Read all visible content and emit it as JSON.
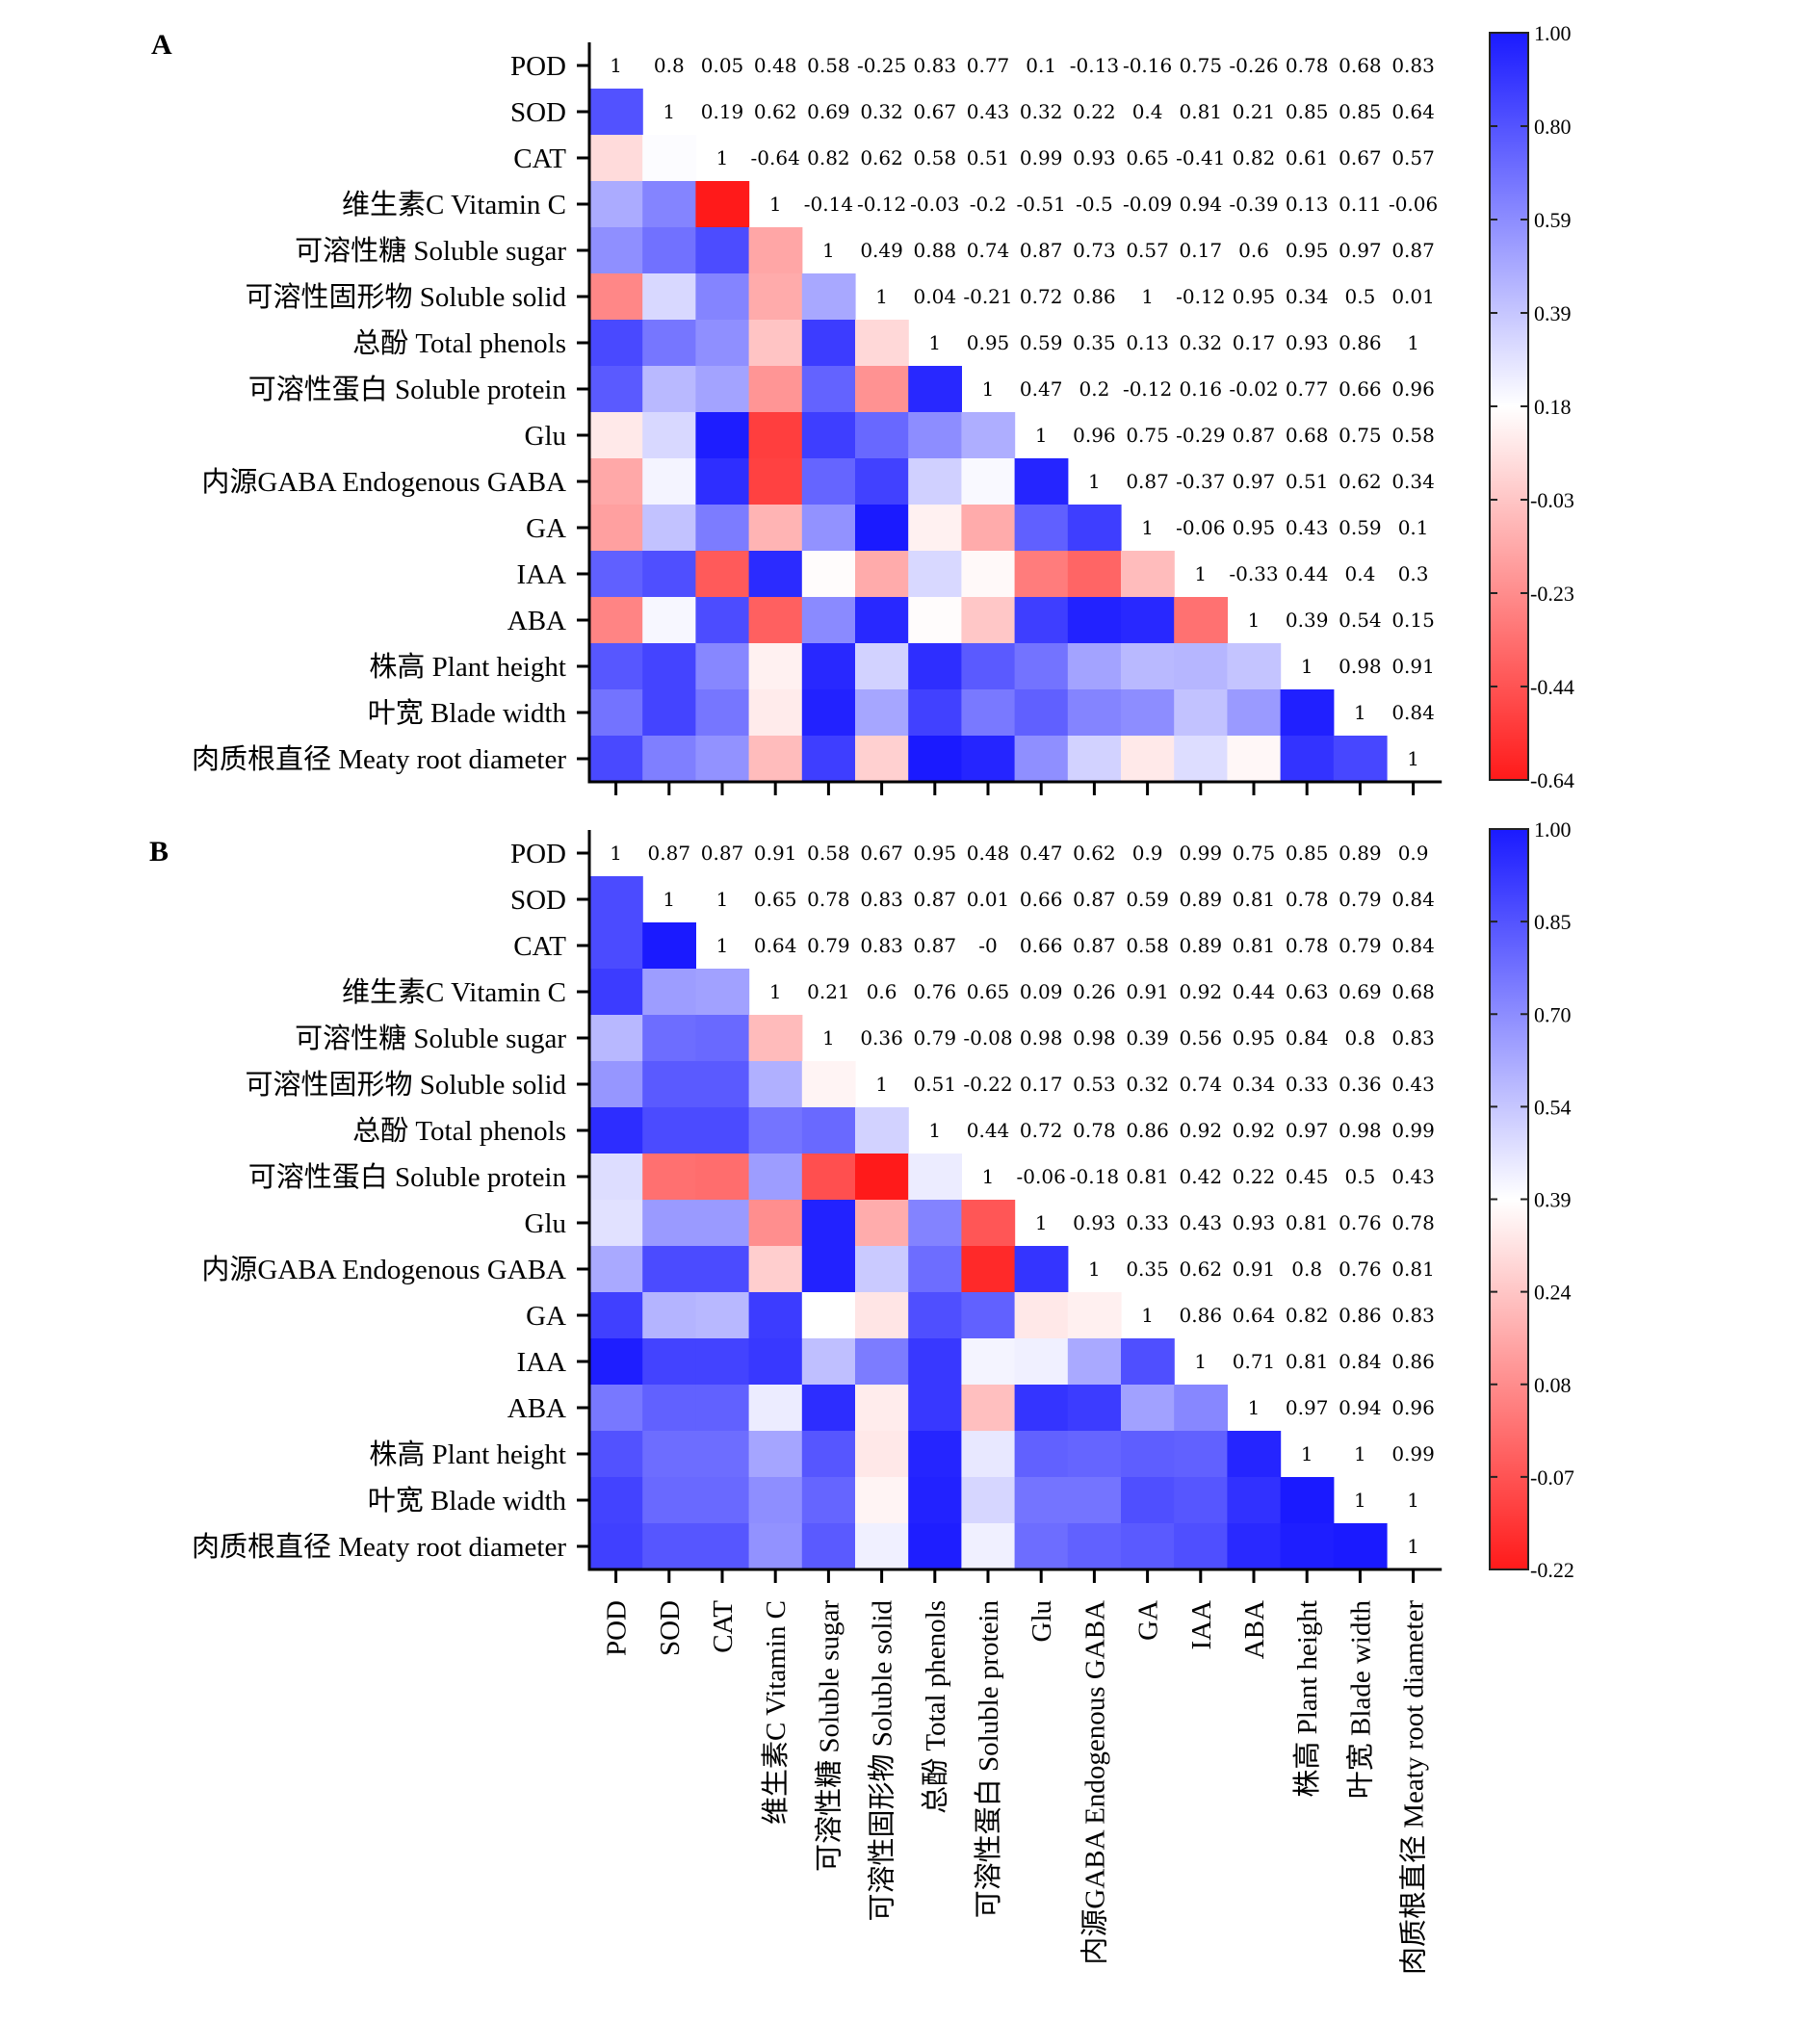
{
  "chart_data": [
    {
      "type": "heatmap",
      "panel": "A",
      "title": "",
      "variables": [
        "POD",
        "SOD",
        "CAT",
        "维生素C Vitamin C",
        "可溶性糖 Soluble sugar",
        "可溶性固形物 Soluble solid",
        "总酚 Total  phenols",
        "可溶性蛋白 Soluble protein",
        "Glu",
        "内源GABA Endogenous GABA",
        "GA",
        "IAA",
        "ABA",
        "株高 Plant height",
        "叶宽 Blade width",
        "肉质根直径 Meaty root diameter"
      ],
      "upper_triangle_labels": [
        [
          "1",
          "0.8",
          "0.05",
          "0.48",
          "0.58",
          "-0.25",
          "0.83",
          "0.77",
          "0.1",
          "-0.13",
          "-0.16",
          "0.75",
          "-0.26",
          "0.78",
          "0.68",
          "0.83"
        ],
        [
          "1",
          "0.19",
          "0.62",
          "0.69",
          "0.32",
          "0.67",
          "0.43",
          "0.32",
          "0.22",
          "0.4",
          "0.81",
          "0.21",
          "0.85",
          "0.85",
          "0.64"
        ],
        [
          "1",
          "-0.64",
          "0.82",
          "0.62",
          "0.58",
          "0.51",
          "0.99",
          "0.93",
          "0.65",
          "-0.41",
          "0.82",
          "0.61",
          "0.67",
          "0.57"
        ],
        [
          "1",
          "-0.14",
          "-0.12",
          "-0.03",
          "-0.2",
          "-0.51",
          "-0.5",
          "-0.09",
          "0.94",
          "-0.39",
          "0.13",
          "0.11",
          "-0.06"
        ],
        [
          "1",
          "0.49",
          "0.88",
          "0.74",
          "0.87",
          "0.73",
          "0.57",
          "0.17",
          "0.6",
          "0.95",
          "0.97",
          "0.87"
        ],
        [
          "1",
          "0.04",
          "-0.21",
          "0.72",
          "0.86",
          "1",
          "-0.12",
          "0.95",
          "0.34",
          "0.5",
          "0.01"
        ],
        [
          "1",
          "0.95",
          "0.59",
          "0.35",
          "0.13",
          "0.32",
          "0.17",
          "0.93",
          "0.86",
          "1"
        ],
        [
          "1",
          "0.47",
          "0.2",
          "-0.12",
          "0.16",
          "-0.02",
          "0.77",
          "0.66",
          "0.96"
        ],
        [
          "1",
          "0.96",
          "0.75",
          "-0.29",
          "0.87",
          "0.68",
          "0.75",
          "0.58"
        ],
        [
          "1",
          "0.87",
          "-0.37",
          "0.97",
          "0.51",
          "0.62",
          "0.34"
        ],
        [
          "1",
          "-0.06",
          "0.95",
          "0.43",
          "0.59",
          "0.1"
        ],
        [
          "1",
          "-0.33",
          "0.44",
          "0.4",
          "0.3"
        ],
        [
          "1",
          "0.39",
          "0.54",
          "0.15"
        ],
        [
          "1",
          "0.98",
          "0.91"
        ],
        [
          "1",
          "0.84"
        ],
        [
          "1"
        ]
      ],
      "colorbar": {
        "min": -0.64,
        "max": 1.0,
        "mid": 0.18,
        "ticks": [
          "1.00",
          "0.80",
          "0.59",
          "0.39",
          "0.18",
          "-0.03",
          "-0.23",
          "-0.44",
          "-0.64"
        ],
        "low_color": "#ff1a1a",
        "mid_color": "#ffffff",
        "high_color": "#1a1aff"
      },
      "show_x_tick_labels": false
    },
    {
      "type": "heatmap",
      "panel": "B",
      "title": "",
      "variables": [
        "POD",
        "SOD",
        "CAT",
        "维生素C Vitamin C",
        "可溶性糖 Soluble sugar",
        "可溶性固形物 Soluble solid",
        "总酚 Total  phenols",
        "可溶性蛋白 Soluble protein",
        "Glu",
        "内源GABA Endogenous GABA",
        "GA",
        "IAA",
        "ABA",
        "株高 Plant height",
        "叶宽 Blade width",
        "肉质根直径 Meaty root diameter"
      ],
      "upper_triangle_labels": [
        [
          "1",
          "0.87",
          "0.87",
          "0.91",
          "0.58",
          "0.67",
          "0.95",
          "0.48",
          "0.47",
          "0.62",
          "0.9",
          "0.99",
          "0.75",
          "0.85",
          "0.89",
          "0.9"
        ],
        [
          "1",
          "1",
          "0.65",
          "0.78",
          "0.83",
          "0.87",
          "0.01",
          "0.66",
          "0.87",
          "0.59",
          "0.89",
          "0.81",
          "0.78",
          "0.79",
          "0.84"
        ],
        [
          "1",
          "0.64",
          "0.79",
          "0.83",
          "0.87",
          "-0",
          "0.66",
          "0.87",
          "0.58",
          "0.89",
          "0.81",
          "0.78",
          "0.79",
          "0.84"
        ],
        [
          "1",
          "0.21",
          "0.6",
          "0.76",
          "0.65",
          "0.09",
          "0.26",
          "0.91",
          "0.92",
          "0.44",
          "0.63",
          "0.69",
          "0.68"
        ],
        [
          "1",
          "0.36",
          "0.79",
          "-0.08",
          "0.98",
          "0.98",
          "0.39",
          "0.56",
          "0.95",
          "0.84",
          "0.8",
          "0.83"
        ],
        [
          "1",
          "0.51",
          "-0.22",
          "0.17",
          "0.53",
          "0.32",
          "0.74",
          "0.34",
          "0.33",
          "0.36",
          "0.43"
        ],
        [
          "1",
          "0.44",
          "0.72",
          "0.78",
          "0.86",
          "0.92",
          "0.92",
          "0.97",
          "0.98",
          "0.99"
        ],
        [
          "1",
          "-0.06",
          "-0.18",
          "0.81",
          "0.42",
          "0.22",
          "0.45",
          "0.5",
          "0.43"
        ],
        [
          "1",
          "0.93",
          "0.33",
          "0.43",
          "0.93",
          "0.81",
          "0.76",
          "0.78"
        ],
        [
          "1",
          "0.35",
          "0.62",
          "0.91",
          "0.8",
          "0.76",
          "0.81"
        ],
        [
          "1",
          "0.86",
          "0.64",
          "0.82",
          "0.86",
          "0.83"
        ],
        [
          "1",
          "0.71",
          "0.81",
          "0.84",
          "0.86"
        ],
        [
          "1",
          "0.97",
          "0.94",
          "0.96"
        ],
        [
          "1",
          "1",
          "0.99"
        ],
        [
          "1",
          "1"
        ],
        [
          "1"
        ]
      ],
      "colorbar": {
        "min": -0.22,
        "max": 1.0,
        "mid": 0.39,
        "ticks": [
          "1.00",
          "0.85",
          "0.70",
          "0.54",
          "0.39",
          "0.24",
          "0.08",
          "-0.07",
          "-0.22"
        ],
        "low_color": "#ff1a1a",
        "mid_color": "#ffffff",
        "high_color": "#1a1aff"
      },
      "show_x_tick_labels": true
    }
  ],
  "panels": {
    "A": {
      "letter": "A"
    },
    "B": {
      "letter": "B"
    }
  }
}
